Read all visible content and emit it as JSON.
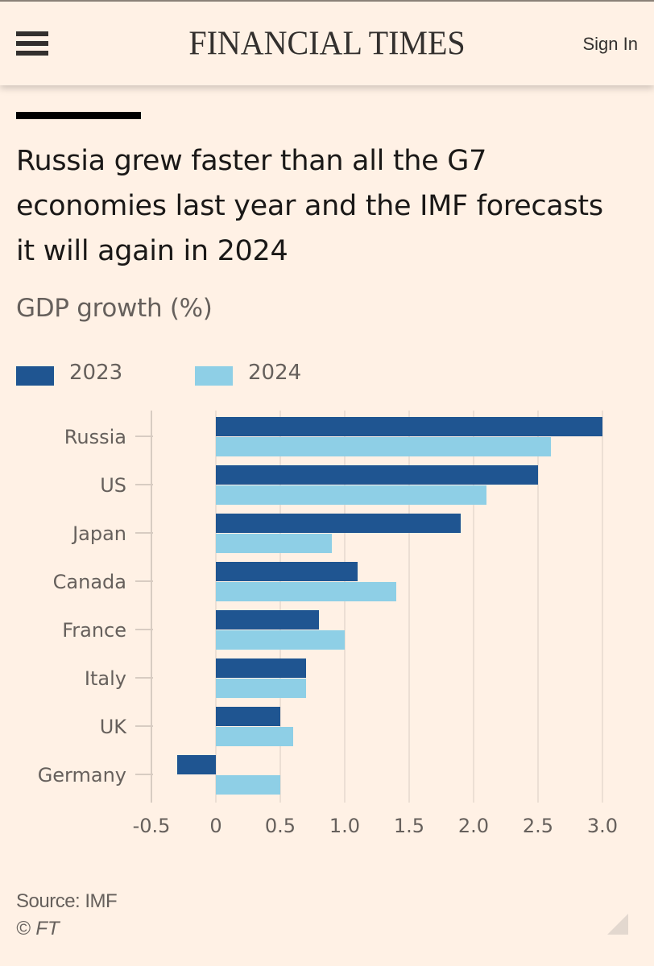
{
  "header": {
    "logo": "FINANCIAL TIMES",
    "sign_in": "Sign In",
    "menu_icon": "hamburger-menu-icon"
  },
  "article": {
    "title": "Russia grew faster than all the G7 economies last year and the IMF forecasts it will again in 2024",
    "subtitle": "GDP growth (%)",
    "source": "Source: IMF",
    "copyright": "© FT"
  },
  "colors": {
    "background": "#fff1e5",
    "series_2023": "#1f5591",
    "series_2024": "#8ecfe6",
    "text_muted": "#66605c",
    "grid": "#e6d9ce"
  },
  "chart_data": {
    "type": "bar",
    "orientation": "horizontal",
    "title": "Russia grew faster than all the G7 economies last year and the IMF forecasts it will again in 2024",
    "subtitle": "GDP growth (%)",
    "xlabel": "",
    "ylabel": "",
    "categories": [
      "Russia",
      "US",
      "Japan",
      "Canada",
      "France",
      "Italy",
      "UK",
      "Germany"
    ],
    "series": [
      {
        "name": "2023",
        "values": [
          3.0,
          2.5,
          1.9,
          1.1,
          0.8,
          0.7,
          0.5,
          -0.3
        ]
      },
      {
        "name": "2024",
        "values": [
          2.6,
          2.1,
          0.9,
          1.4,
          1.0,
          0.7,
          0.6,
          0.5
        ]
      }
    ],
    "xlim": [
      -0.5,
      3.0
    ],
    "xticks": [
      -0.5,
      0,
      0.5,
      1.0,
      1.5,
      2.0,
      2.5,
      3.0
    ],
    "xtick_labels": [
      "-0.5",
      "0",
      "0.5",
      "1.0",
      "1.5",
      "2.0",
      "2.5",
      "3.0"
    ],
    "grid": true,
    "legend_position": "top-left",
    "source": "Source: IMF"
  }
}
